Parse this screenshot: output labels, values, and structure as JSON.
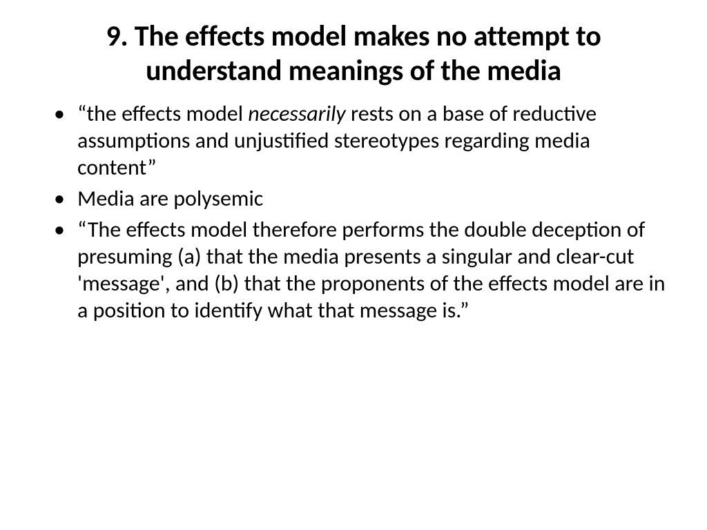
{
  "background_color": "#ffffff",
  "text_color": "#000000",
  "font_family": "Calibri",
  "title": {
    "text": "9. The effects model makes no attempt to understand meanings of the media",
    "fontsize": 42,
    "weight": 700,
    "align": "center"
  },
  "bullets": {
    "fontsize": 32,
    "marker": "•",
    "items": [
      {
        "pre": "“the effects model ",
        "italic": "necessarily",
        "post": " rests on a base of reductive assumptions and unjustified stereotypes regarding media content”"
      },
      {
        "pre": "Media are polysemic",
        "italic": "",
        "post": ""
      },
      {
        "pre": "“The effects model therefore performs the double deception of presuming (a) that the media presents a singular and clear-cut 'message', and (b) that the proponents of the effects model are in a position to identify what that message is.”",
        "italic": "",
        "post": ""
      }
    ]
  }
}
